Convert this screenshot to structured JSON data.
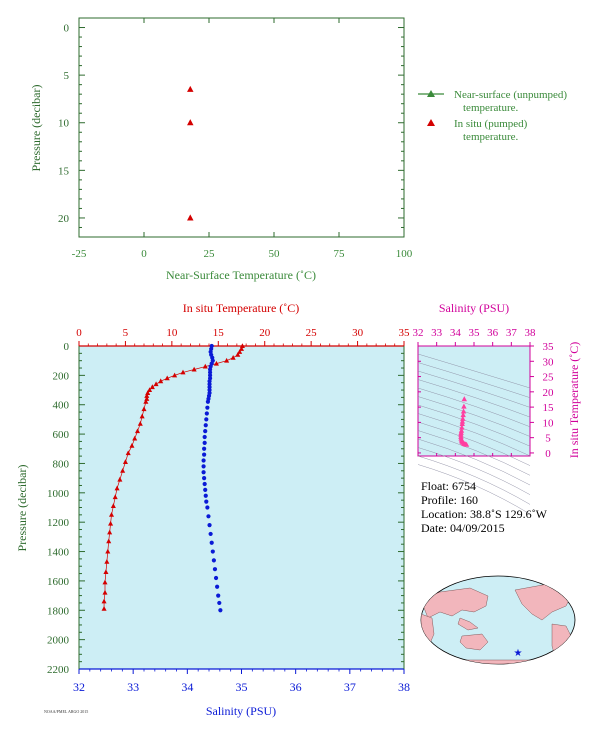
{
  "colors": {
    "green": "#3a8a3a",
    "axis_green": "#2e6b2e",
    "red": "#d40000",
    "blue": "#0a1ad6",
    "magenta": "#d1009a",
    "pink": "#ff3fa0",
    "plot_bg": "#cdeef5",
    "land": "#f2b6bc",
    "ocean": "#cdeef5"
  },
  "chart_data": [
    {
      "type": "scatter",
      "xlabel": "Near-Surface Temperature (˚C)",
      "ylabel": "Pressure (decibar)",
      "xlim": [
        -25,
        100
      ],
      "ylim": [
        22,
        -1
      ],
      "xticks": [
        -25,
        0,
        25,
        50,
        75,
        100
      ],
      "yticks": [
        0,
        5,
        10,
        15,
        20
      ],
      "legend": {
        "placement": "right",
        "entries": [
          {
            "name_lines": [
              "Near-surface (unpumped)",
              "temperature."
            ],
            "marker": "line-triangle",
            "color": "#3a8a3a"
          },
          {
            "name_lines": [
              "In situ (pumped)",
              "temperature."
            ],
            "marker": "triangle",
            "color": "#d40000"
          }
        ]
      },
      "series": [
        {
          "name": "In situ (pumped) temperature.",
          "color": "#d40000",
          "x": [
            17.8,
            17.8,
            17.8
          ],
          "y": [
            6.5,
            10,
            20
          ]
        }
      ]
    },
    {
      "type": "scatter",
      "top_xlabel": "In situ Temperature (˚C)",
      "bottom_xlabel": "Salinity (PSU)",
      "ylabel": "Pressure (decibar)",
      "temp_lim": [
        0,
        35
      ],
      "sal_lim": [
        32,
        38
      ],
      "ylim": [
        2200,
        0
      ],
      "temp_ticks": [
        0,
        5,
        10,
        15,
        20,
        25,
        30,
        35
      ],
      "sal_ticks": [
        32,
        33,
        34,
        35,
        36,
        37,
        38
      ],
      "yticks": [
        0,
        200,
        400,
        600,
        800,
        1000,
        1200,
        1400,
        1600,
        1800,
        2000,
        2200
      ],
      "series": [
        {
          "name": "In situ Temperature",
          "color": "#d40000",
          "x": [
            17.6,
            17.5,
            17.3,
            17.1,
            16.6,
            15.9,
            14.8,
            13.6,
            12.4,
            11.2,
            10.3,
            9.5,
            8.8,
            8.3,
            7.9,
            7.6,
            7.4,
            7.3,
            7.3,
            7.2,
            7.0,
            6.8,
            6.6,
            6.3,
            6.0,
            5.7,
            5.3,
            5.0,
            4.7,
            4.4,
            4.1,
            3.9,
            3.7,
            3.5,
            3.4,
            3.3,
            3.2,
            3.1,
            3.0,
            2.9,
            2.8,
            2.8,
            2.7,
            2.7
          ],
          "y": [
            0,
            20,
            40,
            60,
            80,
            100,
            120,
            140,
            160,
            180,
            200,
            220,
            240,
            260,
            280,
            300,
            320,
            340,
            360,
            380,
            430,
            480,
            530,
            580,
            630,
            680,
            730,
            790,
            850,
            910,
            970,
            1030,
            1090,
            1150,
            1210,
            1270,
            1330,
            1400,
            1470,
            1540,
            1610,
            1680,
            1740,
            1790
          ]
        },
        {
          "name": "Salinity",
          "color": "#0a1ad6",
          "x": [
            34.45,
            34.44,
            34.43,
            34.44,
            34.46,
            34.47,
            34.45,
            34.43,
            34.42,
            34.42,
            34.42,
            34.42,
            34.41,
            34.41,
            34.41,
            34.41,
            34.41,
            34.4,
            34.39,
            34.38,
            34.37,
            34.36,
            34.35,
            34.34,
            34.33,
            34.32,
            34.32,
            34.31,
            34.31,
            34.3,
            34.3,
            34.3,
            34.31,
            34.32,
            34.33,
            34.34,
            34.35,
            34.37,
            34.39,
            34.41,
            34.43,
            34.45,
            34.47,
            34.49,
            34.51,
            34.53,
            34.55,
            34.57,
            34.59,
            34.61
          ],
          "y": [
            0,
            20,
            40,
            60,
            80,
            100,
            120,
            140,
            160,
            180,
            200,
            220,
            240,
            260,
            280,
            300,
            320,
            340,
            360,
            380,
            420,
            460,
            500,
            540,
            580,
            620,
            660,
            700,
            740,
            780,
            820,
            860,
            900,
            940,
            980,
            1020,
            1060,
            1100,
            1160,
            1220,
            1280,
            1340,
            1400,
            1460,
            1520,
            1580,
            1640,
            1700,
            1750,
            1800
          ]
        }
      ]
    },
    {
      "type": "scatter",
      "title": "Salinity (PSU)",
      "ylabel": "In situ Temperature (˚C)",
      "xlim": [
        32,
        38
      ],
      "ylim": [
        -1,
        35
      ],
      "xticks": [
        32,
        33,
        34,
        35,
        36,
        37,
        38
      ],
      "yticks": [
        0,
        5,
        10,
        15,
        20,
        25,
        30,
        35
      ],
      "series": [
        {
          "name": "T-S",
          "color": "#ff3fa0",
          "x": [
            34.48,
            34.46,
            34.44,
            34.42,
            34.4,
            34.38,
            34.37,
            34.35,
            34.33,
            34.31,
            34.3,
            34.3,
            34.31,
            34.33,
            34.36,
            34.4,
            34.45,
            34.5,
            34.55,
            34.6
          ],
          "y": [
            17.6,
            15.2,
            13.6,
            12.4,
            11.2,
            10.3,
            9.5,
            8.3,
            7.3,
            6.6,
            6.0,
            5.3,
            4.7,
            4.1,
            3.7,
            3.4,
            3.1,
            2.9,
            2.8,
            2.7
          ]
        }
      ]
    }
  ],
  "float_info": {
    "float": "Float:  6754",
    "profile": "Profile:  160",
    "location": "Location:  38.8˚S  129.6˚W",
    "date": "Date:  04/09/2015"
  },
  "map": {
    "marker_symbol": "★",
    "marker_color": "#0a1ad6"
  },
  "footer": {
    "credit": "NOAA/PMEL  ARGO  2015"
  }
}
